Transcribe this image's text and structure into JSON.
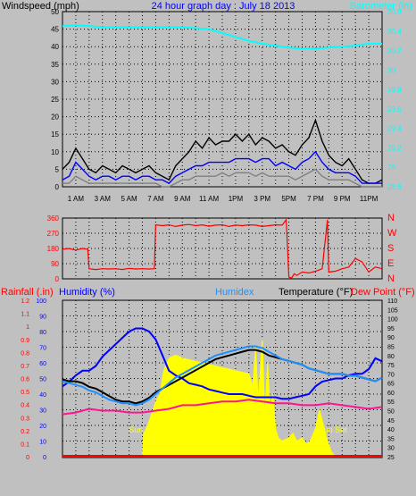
{
  "chart_data": [
    {
      "type": "line",
      "title": "24 hour graph day : July 18 2013",
      "ylabel": "Windspeed (mph)",
      "y2label": "Barometer (in)",
      "ylim": [
        0,
        50
      ],
      "y_ticks": [
        "0",
        "5",
        "10",
        "15",
        "20",
        "25",
        "30",
        "35",
        "40",
        "45",
        "50"
      ],
      "y2lim": [
        28.8,
        30.6
      ],
      "y2_ticks": [
        "28.8",
        "29",
        "29.2",
        "29.4",
        "29.6",
        "29.8",
        "30",
        "30.2",
        "30.4",
        "30.6"
      ],
      "xlim": [
        0,
        24
      ],
      "x_ticks": [
        {
          "x": 1,
          "label": "1 AM"
        },
        {
          "x": 3,
          "label": "3 AM"
        },
        {
          "x": 5,
          "label": "5 AM"
        },
        {
          "x": 7,
          "label": "7 AM"
        },
        {
          "x": 9,
          "label": "9 AM"
        },
        {
          "x": 11,
          "label": "11 AM"
        },
        {
          "x": 13,
          "label": "1PM"
        },
        {
          "x": 15,
          "label": "3 PM"
        },
        {
          "x": 17,
          "label": "5PM"
        },
        {
          "x": 19,
          "label": "7 PM"
        },
        {
          "x": 21,
          "label": "9 PM"
        },
        {
          "x": 23,
          "label": "11PM"
        }
      ],
      "grid": true,
      "series": [
        {
          "color": "#000000",
          "axis": "left",
          "x": [
            0,
            0.5,
            1,
            1.5,
            2,
            2.5,
            3,
            3.5,
            4,
            4.5,
            5,
            5.5,
            6,
            6.5,
            7,
            7.5,
            8,
            8.5,
            9,
            9.5,
            10,
            10.5,
            11,
            11.5,
            12,
            12.5,
            13,
            13.5,
            14,
            14.5,
            15,
            15.5,
            16,
            16.5,
            17,
            17.5,
            18,
            18.5,
            19,
            19.5,
            20,
            20.5,
            21,
            21.5,
            22,
            22.5,
            23,
            23.5,
            24
          ],
          "y": [
            5,
            7,
            11,
            8,
            5,
            4,
            6,
            5,
            4,
            6,
            5,
            4,
            5,
            6,
            4,
            3,
            2,
            6,
            8,
            10,
            13,
            11,
            14,
            12,
            13,
            13,
            15,
            13,
            15,
            12,
            14,
            13,
            11,
            12,
            10,
            9,
            12,
            14,
            19,
            13,
            9,
            7,
            6,
            8,
            5,
            2,
            1,
            1,
            2
          ]
        },
        {
          "color": "#0000ff",
          "axis": "left",
          "x": [
            0,
            0.5,
            1,
            1.5,
            2,
            2.5,
            3,
            3.5,
            4,
            4.5,
            5,
            5.5,
            6,
            6.5,
            7,
            7.5,
            8,
            8.5,
            9,
            9.5,
            10,
            10.5,
            11,
            11.5,
            12,
            12.5,
            13,
            13.5,
            14,
            14.5,
            15,
            15.5,
            16,
            16.5,
            17,
            17.5,
            18,
            18.5,
            19,
            19.5,
            20,
            20.5,
            21,
            21.5,
            22,
            22.5,
            23,
            23.5,
            24
          ],
          "y": [
            2,
            3,
            7,
            5,
            3,
            2,
            3,
            3,
            2,
            3,
            3,
            2,
            3,
            3,
            2,
            2,
            1,
            3,
            4,
            5,
            6,
            6,
            7,
            7,
            7,
            7,
            8,
            8,
            8,
            7,
            8,
            8,
            6,
            7,
            6,
            5,
            7,
            8,
            10,
            7,
            5,
            4,
            4,
            4,
            3,
            1,
            1,
            1,
            1
          ]
        },
        {
          "color": "#808080",
          "axis": "left",
          "x": [
            0,
            0.5,
            1,
            1.5,
            2,
            2.5,
            3,
            3.5,
            4,
            4.5,
            5,
            5.5,
            6,
            6.5,
            7,
            7.5,
            8,
            8.5,
            9,
            9.5,
            10,
            10.5,
            11,
            11.5,
            12,
            12.5,
            13,
            13.5,
            14,
            14.5,
            15,
            15.5,
            16,
            16.5,
            17,
            17.5,
            18,
            18.5,
            19,
            19.5,
            20,
            20.5,
            21,
            21.5,
            22,
            22.5,
            23,
            23.5,
            24
          ],
          "y": [
            1,
            1,
            3,
            2,
            1,
            1,
            1,
            1,
            1,
            1,
            1,
            1,
            1,
            1,
            1,
            0,
            0,
            1,
            2,
            2,
            3,
            3,
            3,
            3,
            4,
            3,
            4,
            4,
            4,
            3,
            4,
            3,
            3,
            3,
            3,
            2,
            3,
            4,
            5,
            3,
            2,
            2,
            2,
            2,
            1,
            0,
            0,
            0,
            0
          ]
        },
        {
          "color": "#00ffff",
          "axis": "right",
          "x": [
            0,
            1,
            2,
            3,
            4,
            5,
            6,
            7,
            8,
            9,
            10,
            11,
            12,
            13,
            14,
            15,
            16,
            17,
            18,
            19,
            20,
            21,
            22,
            23,
            24
          ],
          "y": [
            30.45,
            30.46,
            30.45,
            30.44,
            30.44,
            30.44,
            30.44,
            30.44,
            30.44,
            30.44,
            30.43,
            30.42,
            30.38,
            30.34,
            30.3,
            30.27,
            30.25,
            30.23,
            30.22,
            30.22,
            30.23,
            30.24,
            30.25,
            30.27,
            30.27
          ]
        }
      ]
    },
    {
      "type": "line",
      "ylim": [
        0,
        360
      ],
      "y_ticks": [
        "0",
        "90",
        "180",
        "270",
        "360"
      ],
      "y2_ticks": [
        "N",
        "E",
        "S",
        "W",
        "N"
      ],
      "xlim": [
        0,
        24
      ],
      "grid": true,
      "series": [
        {
          "color": "#ff0000",
          "x": [
            0,
            0.5,
            1,
            1.5,
            1.9,
            2.0,
            2.5,
            3,
            3.5,
            4,
            4.5,
            5,
            5.5,
            6,
            6.5,
            6.9,
            7.0,
            7.5,
            8,
            8.5,
            9,
            9.5,
            10,
            10.5,
            11,
            11.5,
            12,
            12.5,
            13,
            13.5,
            14,
            14.5,
            15,
            15.5,
            16,
            16.5,
            16.8,
            17.0,
            17.2,
            17.4,
            17.6,
            18,
            18.5,
            19,
            19.5,
            19.9,
            20.0,
            20.5,
            21,
            21.5,
            22,
            22.5,
            23,
            23.5,
            24
          ],
          "y": [
            175,
            180,
            170,
            180,
            175,
            60,
            55,
            60,
            58,
            60,
            55,
            62,
            58,
            60,
            58,
            60,
            320,
            315,
            320,
            310,
            318,
            322,
            315,
            320,
            312,
            318,
            320,
            310,
            318,
            315,
            320,
            318,
            310,
            315,
            320,
            318,
            350,
            10,
            5,
            30,
            20,
            40,
            35,
            45,
            60,
            350,
            40,
            45,
            60,
            70,
            120,
            100,
            40,
            70,
            60
          ]
        }
      ]
    },
    {
      "type": "line",
      "ylabel": "Rainfall (.in)",
      "ylabel2": "Humidity (%)",
      "legend": [
        "Humidex",
        "Temperature (°F)",
        "Dew Point (°F)"
      ],
      "rain_ticks": [
        "0",
        "0.1",
        "0.2",
        "0.3",
        "0.4",
        "0.5",
        "0.6",
        "0.7",
        "0.8",
        "0.9",
        "1",
        "1.1",
        "1.2"
      ],
      "humidity_ticks": [
        "0",
        "10",
        "20",
        "30",
        "40",
        "50",
        "60",
        "70",
        "80",
        "90",
        "100"
      ],
      "temp_ticks": [
        "25",
        "30",
        "35",
        "40",
        "45",
        "50",
        "55",
        "60",
        "65",
        "70",
        "75",
        "80",
        "85",
        "90",
        "95",
        "100",
        "105",
        "110"
      ],
      "humidity_lim": [
        0,
        100
      ],
      "temp_lim": [
        25,
        110
      ],
      "xlim": [
        0,
        24
      ],
      "grid": true,
      "annotations": [
        {
          "text": "Sun Rise",
          "x": 6.2
        },
        {
          "text": "Sun Set",
          "x": 20.3
        }
      ],
      "series": [
        {
          "color": "#0000ff",
          "axis": "humidity",
          "x": [
            0,
            0.5,
            1,
            1.5,
            2,
            2.5,
            3,
            3.5,
            4,
            4.5,
            5,
            5.5,
            6,
            6.5,
            7,
            7.5,
            8,
            8.5,
            9,
            9.5,
            10,
            10.5,
            11,
            11.5,
            12,
            12.5,
            13,
            13.5,
            14,
            14.5,
            15,
            15.5,
            16,
            16.5,
            17,
            17.5,
            18,
            18.5,
            19,
            19.5,
            20,
            20.5,
            21,
            21.5,
            22,
            22.5,
            23,
            23.5,
            24
          ],
          "y": [
            45,
            48,
            52,
            55,
            55,
            58,
            64,
            68,
            72,
            76,
            80,
            82,
            82,
            80,
            75,
            65,
            55,
            52,
            50,
            47,
            46,
            45,
            43,
            42,
            41,
            40,
            40,
            40,
            39,
            38,
            38,
            38,
            38,
            37,
            37,
            38,
            39,
            40,
            45,
            48,
            49,
            50,
            50,
            52,
            53,
            53,
            56,
            63,
            61
          ]
        },
        {
          "color": "#000000",
          "axis": "temp",
          "x": [
            0,
            0.5,
            1,
            1.5,
            2,
            2.5,
            3,
            3.5,
            4,
            4.5,
            5,
            5.5,
            6,
            6.5,
            7,
            7.5,
            8,
            8.5,
            9,
            9.5,
            10,
            10.5,
            11,
            11.5,
            12,
            12.5,
            13,
            13.5,
            14,
            14.5,
            15,
            15.5,
            16,
            16.5,
            17,
            17.5,
            18,
            18.5,
            19,
            19.5,
            20,
            20.5,
            21,
            21.5,
            22,
            22.5,
            23,
            23.5,
            24
          ],
          "y": [
            67,
            66,
            66,
            65,
            63,
            62,
            60,
            58,
            56,
            55,
            55,
            54,
            55,
            57,
            60,
            62,
            64,
            66,
            68,
            70,
            72,
            74,
            76,
            78,
            79,
            80,
            81,
            82,
            83,
            83,
            82,
            80,
            79,
            78,
            77,
            76,
            75,
            73,
            72,
            71,
            70,
            70,
            70,
            69,
            69,
            68,
            67,
            66,
            68
          ]
        },
        {
          "color": "#1e90ff",
          "axis": "temp",
          "x": [
            0,
            0.5,
            1,
            1.5,
            2,
            2.5,
            3,
            3.5,
            4,
            4.5,
            5,
            5.5,
            6,
            6.5,
            7,
            7.5,
            8,
            8.5,
            9,
            9.5,
            10,
            10.5,
            11,
            11.5,
            12,
            12.5,
            13,
            13.5,
            14,
            14.5,
            15,
            15.5,
            16,
            16.5,
            17,
            17.5,
            18,
            18.5,
            19,
            19.5,
            20,
            20.5,
            21,
            21.5,
            22,
            22.5,
            23,
            23.5,
            24
          ],
          "y": [
            66,
            65,
            64,
            63,
            61,
            60,
            58,
            56,
            55,
            54,
            54,
            53,
            54,
            56,
            59,
            62,
            65,
            68,
            70,
            72,
            74,
            76,
            78,
            80,
            81,
            82,
            83,
            84,
            85,
            85,
            84,
            82,
            80,
            78,
            77,
            76,
            75,
            73,
            72,
            71,
            70,
            70,
            70,
            69,
            69,
            68,
            67,
            66,
            68
          ]
        },
        {
          "color": "#ff1493",
          "axis": "temp",
          "x": [
            0,
            1,
            2,
            3,
            4,
            5,
            6,
            7,
            8,
            9,
            10,
            11,
            12,
            13,
            14,
            15,
            16,
            17,
            18,
            19,
            20,
            21,
            22,
            23,
            24
          ],
          "y": [
            48,
            49,
            51,
            50,
            50,
            49,
            49,
            50,
            51,
            53,
            53,
            54,
            55,
            55,
            56,
            55,
            54,
            54,
            53,
            53,
            54,
            53,
            52,
            51,
            52
          ]
        },
        {
          "color": "#ffff00",
          "axis": "solar",
          "fill": true,
          "x": [
            0,
            6.0,
            6.1,
            6.3,
            6.6,
            7.0,
            7.3,
            7.6,
            8.0,
            8.5,
            9,
            9.5,
            10,
            10.5,
            11,
            11.5,
            12,
            12.5,
            13,
            13.5,
            14,
            14.3,
            14.5,
            14.7,
            15,
            15.2,
            15.4,
            15.6,
            15.8,
            16,
            16.2,
            16.5,
            17,
            17.3,
            17.6,
            18,
            18.3,
            18.6,
            19,
            19.3,
            19.6,
            19.9,
            20.2,
            20.5,
            24
          ],
          "y": [
            0,
            0,
            15,
            18,
            25,
            35,
            40,
            55,
            63,
            65,
            63,
            62,
            61,
            60,
            59,
            58,
            57,
            56,
            55,
            54,
            53,
            45,
            70,
            35,
            75,
            25,
            60,
            30,
            40,
            18,
            12,
            10,
            12,
            15,
            10,
            12,
            8,
            10,
            18,
            30,
            20,
            10,
            3,
            0,
            0
          ]
        }
      ]
    }
  ]
}
